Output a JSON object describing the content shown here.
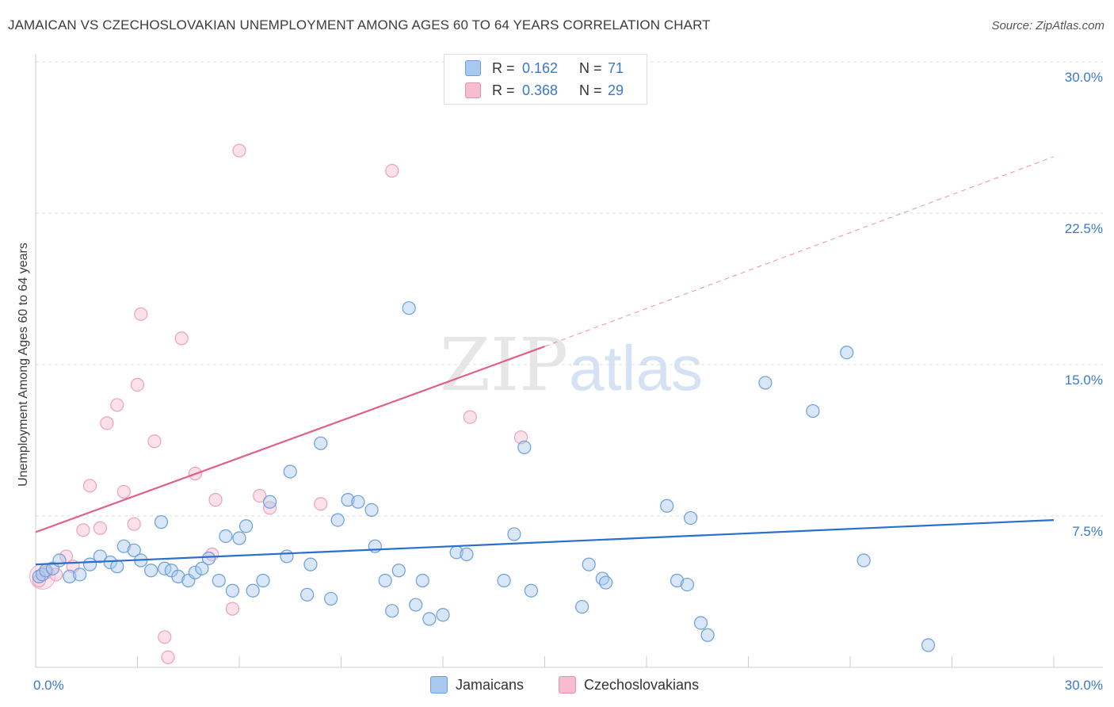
{
  "title": "JAMAICAN VS CZECHOSLOVAKIAN UNEMPLOYMENT AMONG AGES 60 TO 64 YEARS CORRELATION CHART",
  "source": "Source: ZipAtlas.com",
  "watermark": {
    "zip": "ZIP",
    "atlas": "atlas"
  },
  "legend": {
    "r_label": "R =",
    "n_label": "N =",
    "rows": [
      {
        "r": "0.162",
        "n": "71",
        "color": "#a8c8f0"
      },
      {
        "r": "0.368",
        "n": "29",
        "color": "#f8bcd0"
      }
    ]
  },
  "bottom_legend": {
    "jamaicans": "Jamaicans",
    "czechoslovakians": "Czechoslovakians"
  },
  "colors": {
    "blue_line": "#2a6fcc",
    "pink_line": "#e0608a",
    "blue_fill": "#a8c8f0",
    "pink_fill": "#f8bcd0",
    "axis_text": "#3a78c8"
  },
  "chart_data": {
    "type": "scatter",
    "ylabel": "Unemployment Among Ages 60 to 64 years",
    "xlim": [
      0,
      30
    ],
    "ylim": [
      0,
      30
    ],
    "x_tick_labels": [
      "0.0%",
      "30.0%"
    ],
    "y_ticks": [
      {
        "value": 7.5,
        "label": "7.5%"
      },
      {
        "value": 15,
        "label": "15.0%"
      },
      {
        "value": 22.5,
        "label": "22.5%"
      },
      {
        "value": 30,
        "label": "30.0%"
      }
    ],
    "grid": "horizontal dashed",
    "series": [
      {
        "name": "Jamaicans",
        "color": "#a8c8f0",
        "points": [
          [
            0.1,
            4.5
          ],
          [
            0.2,
            4.6
          ],
          [
            0.3,
            4.8
          ],
          [
            0.5,
            4.9
          ],
          [
            0.7,
            5.3
          ],
          [
            1.0,
            4.5
          ],
          [
            1.3,
            4.6
          ],
          [
            1.6,
            5.1
          ],
          [
            1.9,
            5.5
          ],
          [
            2.2,
            5.2
          ],
          [
            2.4,
            5.0
          ],
          [
            2.6,
            6.0
          ],
          [
            2.9,
            5.8
          ],
          [
            3.1,
            5.3
          ],
          [
            3.4,
            4.8
          ],
          [
            3.7,
            7.2
          ],
          [
            3.8,
            4.9
          ],
          [
            4.0,
            4.8
          ],
          [
            4.2,
            4.5
          ],
          [
            4.5,
            4.3
          ],
          [
            4.7,
            4.7
          ],
          [
            4.9,
            4.9
          ],
          [
            5.1,
            5.4
          ],
          [
            5.4,
            4.3
          ],
          [
            5.6,
            6.5
          ],
          [
            5.8,
            3.8
          ],
          [
            6.0,
            6.4
          ],
          [
            6.2,
            7.0
          ],
          [
            6.4,
            3.8
          ],
          [
            6.7,
            4.3
          ],
          [
            6.9,
            8.2
          ],
          [
            7.4,
            5.5
          ],
          [
            7.5,
            9.7
          ],
          [
            8.0,
            3.6
          ],
          [
            8.1,
            5.1
          ],
          [
            8.4,
            11.1
          ],
          [
            8.7,
            3.4
          ],
          [
            8.9,
            7.3
          ],
          [
            9.2,
            8.3
          ],
          [
            9.5,
            8.2
          ],
          [
            9.9,
            7.8
          ],
          [
            10.0,
            6.0
          ],
          [
            10.3,
            4.3
          ],
          [
            10.5,
            2.8
          ],
          [
            10.7,
            4.8
          ],
          [
            11.0,
            17.8
          ],
          [
            11.2,
            3.1
          ],
          [
            11.4,
            4.3
          ],
          [
            11.6,
            2.4
          ],
          [
            12.0,
            2.6
          ],
          [
            12.4,
            5.7
          ],
          [
            12.7,
            5.6
          ],
          [
            13.8,
            4.3
          ],
          [
            14.1,
            6.6
          ],
          [
            14.4,
            10.9
          ],
          [
            14.6,
            3.8
          ],
          [
            16.1,
            3.0
          ],
          [
            16.3,
            5.1
          ],
          [
            16.7,
            4.4
          ],
          [
            16.8,
            4.2
          ],
          [
            18.6,
            8.0
          ],
          [
            18.9,
            4.3
          ],
          [
            19.2,
            4.1
          ],
          [
            19.3,
            7.4
          ],
          [
            19.6,
            2.2
          ],
          [
            19.8,
            1.6
          ],
          [
            21.5,
            14.1
          ],
          [
            22.9,
            12.7
          ],
          [
            23.9,
            15.6
          ],
          [
            24.4,
            5.3
          ],
          [
            26.3,
            1.1
          ]
        ]
      },
      {
        "name": "Czechoslovakians",
        "color": "#f8bcd0",
        "points": [
          [
            0.1,
            4.3
          ],
          [
            0.3,
            4.7
          ],
          [
            0.6,
            4.6
          ],
          [
            0.9,
            5.5
          ],
          [
            1.1,
            5.0
          ],
          [
            1.4,
            6.8
          ],
          [
            1.6,
            9.0
          ],
          [
            1.9,
            6.9
          ],
          [
            2.1,
            12.1
          ],
          [
            2.4,
            13.0
          ],
          [
            2.6,
            8.7
          ],
          [
            2.9,
            7.1
          ],
          [
            3.0,
            14.0
          ],
          [
            3.1,
            17.5
          ],
          [
            3.5,
            11.2
          ],
          [
            3.8,
            1.5
          ],
          [
            3.9,
            0.5
          ],
          [
            4.3,
            16.3
          ],
          [
            4.7,
            9.6
          ],
          [
            5.2,
            5.6
          ],
          [
            5.3,
            8.3
          ],
          [
            5.8,
            2.9
          ],
          [
            6.0,
            25.6
          ],
          [
            6.6,
            8.5
          ],
          [
            6.9,
            7.9
          ],
          [
            8.4,
            8.1
          ],
          [
            10.5,
            24.6
          ],
          [
            12.8,
            12.4
          ],
          [
            14.3,
            11.4
          ]
        ]
      }
    ],
    "trend_lines": [
      {
        "series": "Jamaicans",
        "from": [
          0,
          5.1
        ],
        "to": [
          30,
          7.3
        ],
        "style": "solid"
      },
      {
        "series": "Czechoslovakians",
        "from": [
          0,
          6.7
        ],
        "to": [
          15,
          15.9
        ],
        "style": "solid"
      },
      {
        "series": "Czechoslovakians",
        "from": [
          15,
          15.9
        ],
        "to": [
          30,
          25.3
        ],
        "style": "dashed"
      }
    ]
  }
}
